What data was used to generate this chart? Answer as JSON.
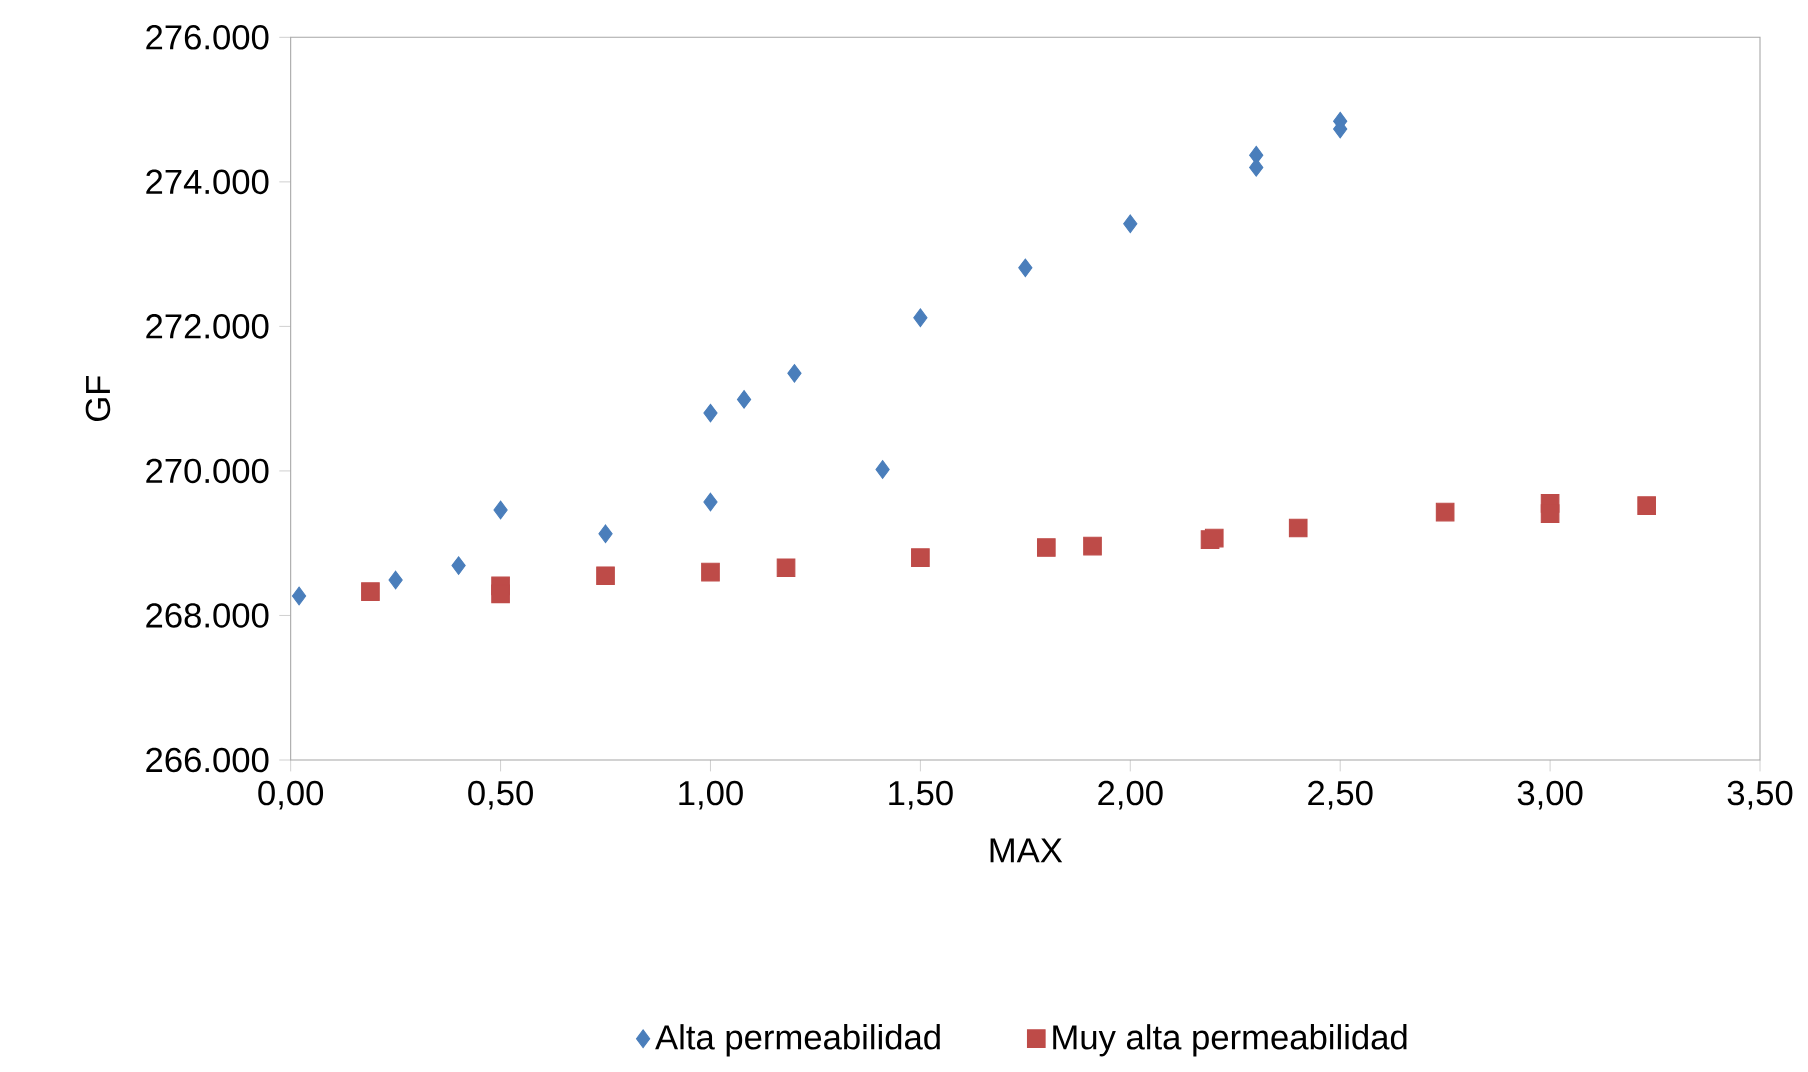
{
  "chart_data": {
    "type": "scatter",
    "xlabel": "MAX",
    "ylabel": "GF",
    "xlim": [
      0,
      3.5
    ],
    "ylim": [
      266000,
      276000
    ],
    "xticks": [
      {
        "value": 0,
        "label": "0,00"
      },
      {
        "value": 0.5,
        "label": "0,50"
      },
      {
        "value": 1,
        "label": "1,00"
      },
      {
        "value": 1.5,
        "label": "1,50"
      },
      {
        "value": 2,
        "label": "2,00"
      },
      {
        "value": 2.5,
        "label": "2,50"
      },
      {
        "value": 3,
        "label": "3,00"
      },
      {
        "value": 3.5,
        "label": "3,50"
      }
    ],
    "yticks": [
      {
        "value": 266000,
        "label": "266.000"
      },
      {
        "value": 268000,
        "label": "268.000"
      },
      {
        "value": 270000,
        "label": "270.000"
      },
      {
        "value": 272000,
        "label": "272.000"
      },
      {
        "value": 274000,
        "label": "274.000"
      },
      {
        "value": 276000,
        "label": "276.000"
      }
    ],
    "legend": "bottom",
    "series": [
      {
        "name": "Alta permeabilidad",
        "color": "#4a7ebb",
        "marker": "diamond",
        "x": [
          0.02,
          0.25,
          0.4,
          0.5,
          0.75,
          1.0,
          1.0,
          1.08,
          1.2,
          1.41,
          1.5,
          1.75,
          2.0,
          2.3,
          2.3,
          2.5,
          2.5
        ],
        "values": [
          268270,
          268490,
          268690,
          269460,
          269130,
          270800,
          269570,
          270990,
          271350,
          270020,
          272120,
          272810,
          273420,
          274370,
          274200,
          274840,
          274730
        ]
      },
      {
        "name": "Muy alta permeabilidad",
        "color": "#be4b48",
        "marker": "square",
        "x": [
          0.19,
          0.5,
          0.5,
          0.75,
          1.0,
          1.18,
          1.5,
          1.8,
          1.91,
          2.19,
          2.2,
          2.4,
          2.75,
          3.0,
          3.0,
          3.23
        ],
        "values": [
          268330,
          268410,
          268300,
          268550,
          268600,
          268660,
          268800,
          268940,
          268960,
          269050,
          269070,
          269210,
          269430,
          269550,
          269410,
          269520
        ]
      }
    ]
  }
}
